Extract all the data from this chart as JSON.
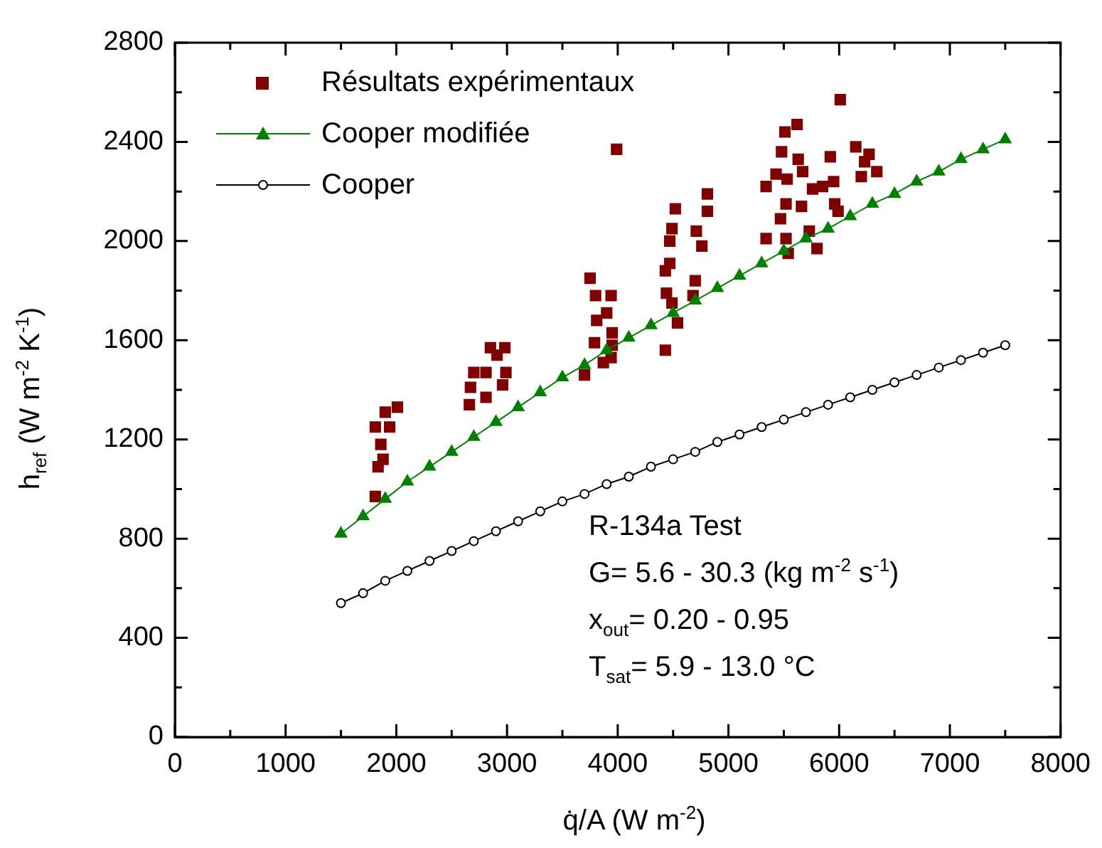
{
  "chart_data": {
    "type": "scatter",
    "xlabel": "q̇/A (W m$^{-2}$)",
    "ylabel": "h$_{ref}$ (W m$^{-2}$ K$^{-1}$)",
    "xlim": [
      0,
      8000
    ],
    "ylim": [
      0,
      2800
    ],
    "xticks": [
      0,
      {
        "value": 500,
        "label": null
      },
      1000,
      {
        "value": 1500,
        "label": null
      },
      2000,
      {
        "value": 2500,
        "label": null
      },
      3000,
      {
        "value": 3500,
        "label": null
      },
      4000,
      {
        "value": 4500,
        "label": null
      },
      5000,
      {
        "value": 5500,
        "label": null
      },
      6000,
      {
        "value": 6500,
        "label": null
      },
      7000,
      {
        "value": 7500,
        "label": null
      },
      8000
    ],
    "yticks": [
      0,
      {
        "value": 200,
        "label": null
      },
      400,
      {
        "value": 600,
        "label": null
      },
      800,
      {
        "value": 1000,
        "label": null
      },
      1200,
      {
        "value": 1400,
        "label": null
      },
      1600,
      {
        "value": 1800,
        "label": null
      },
      2000,
      {
        "value": 2200,
        "label": null
      },
      2400,
      {
        "value": 2600,
        "label": null
      },
      2800
    ],
    "legend": "top left",
    "grid": false,
    "series": [
      {
        "name": "Résultats expérimentaux",
        "marker": "square",
        "color": "#800000",
        "x": [
          1810,
          1835,
          1880,
          1860,
          1810,
          1940,
          1900,
          2010,
          2660,
          2810,
          2670,
          2700,
          2810,
          2960,
          2990,
          2850,
          2910,
          2980,
          3700,
          3790,
          3870,
          3940,
          3950,
          3950,
          3810,
          3900,
          3800,
          3940,
          3750,
          4430,
          4540,
          4490,
          4440,
          4430,
          4470,
          4470,
          4490,
          4520,
          4680,
          4700,
          4760,
          4710,
          4810,
          4810,
          3990,
          6010,
          5620,
          5510,
          5480,
          5630,
          5920,
          6150,
          6270,
          6230,
          5430,
          5530,
          5670,
          6340,
          6200,
          5340,
          5760,
          5850,
          5950,
          5520,
          5660,
          5960,
          5990,
          5470,
          5340,
          5520,
          5730,
          5540,
          5800
        ],
        "values": [
          970,
          1090,
          1120,
          1180,
          1250,
          1250,
          1310,
          1330,
          1340,
          1370,
          1410,
          1470,
          1470,
          1420,
          1470,
          1570,
          1540,
          1570,
          1460,
          1590,
          1510,
          1530,
          1580,
          1630,
          1680,
          1710,
          1780,
          1780,
          1850,
          1560,
          1670,
          1750,
          1790,
          1880,
          1910,
          2000,
          2050,
          2130,
          1780,
          1840,
          1980,
          2040,
          2120,
          2190,
          2370,
          2570,
          2470,
          2440,
          2360,
          2330,
          2340,
          2380,
          2350,
          2320,
          2270,
          2250,
          2280,
          2280,
          2260,
          2220,
          2210,
          2220,
          2240,
          2150,
          2140,
          2150,
          2120,
          2090,
          2010,
          2010,
          2040,
          1950,
          1970
        ]
      },
      {
        "name": "Cooper modifiée",
        "type": "line",
        "marker": "triangle",
        "line_style": "solid",
        "color": "#008000",
        "x": [
          1500,
          1700,
          1900,
          2100,
          2300,
          2500,
          2700,
          2900,
          3100,
          3300,
          3500,
          3700,
          3900,
          4100,
          4300,
          4500,
          4700,
          4900,
          5100,
          5300,
          5500,
          5700,
          5900,
          6100,
          6300,
          6500,
          6700,
          6900,
          7100,
          7300,
          7500
        ],
        "values": [
          820,
          890,
          960,
          1030,
          1090,
          1150,
          1210,
          1270,
          1330,
          1390,
          1450,
          1500,
          1560,
          1610,
          1660,
          1710,
          1760,
          1810,
          1860,
          1910,
          1960,
          2010,
          2050,
          2100,
          2150,
          2190,
          2240,
          2280,
          2330,
          2370,
          2410
        ]
      },
      {
        "name": "Cooper",
        "type": "line",
        "marker": "circle",
        "line_style": "solid",
        "color": "#000000",
        "x": [
          1500,
          1700,
          1900,
          2100,
          2300,
          2500,
          2700,
          2900,
          3100,
          3300,
          3500,
          3700,
          3900,
          4100,
          4300,
          4500,
          4700,
          4900,
          5100,
          5300,
          5500,
          5700,
          5900,
          6100,
          6300,
          6500,
          6700,
          6900,
          7100,
          7300,
          7500
        ],
        "values": [
          540,
          580,
          630,
          670,
          710,
          750,
          790,
          830,
          870,
          910,
          950,
          980,
          1020,
          1050,
          1090,
          1120,
          1150,
          1190,
          1220,
          1250,
          1280,
          1310,
          1340,
          1370,
          1400,
          1430,
          1460,
          1490,
          1520,
          1550,
          1580
        ]
      }
    ],
    "annotations": [
      "R-134a Test",
      "G= 5.6 - 30.3 (kg m$^{-2}$ s$^{-1}$)",
      "x$_{out}$= 0.20 - 0.95",
      "T$_{sat}$= 5.9 - 13.0 °C"
    ]
  }
}
